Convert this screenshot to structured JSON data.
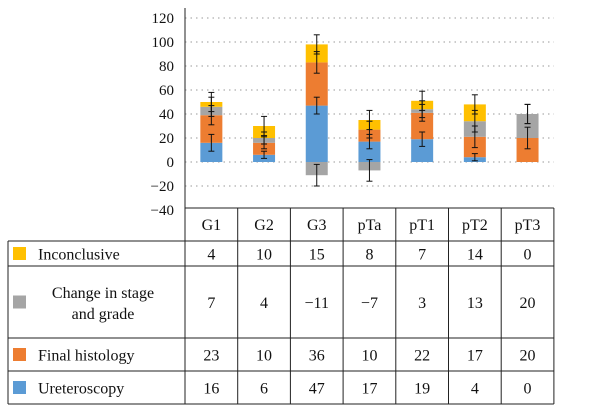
{
  "chart_data": {
    "type": "bar",
    "stacked": true,
    "categories": [
      "G1",
      "G2",
      "G3",
      "pTa",
      "pT1",
      "pT2",
      "pT3"
    ],
    "ylim": [
      -40,
      120
    ],
    "y_ticks": [
      "120",
      "100",
      "80",
      "60",
      "40",
      "20",
      "0",
      "−20",
      "−40"
    ],
    "grid": "dotted horizontal",
    "legend_placement": "table rows below chart",
    "series": [
      {
        "name": "Ureteroscopy",
        "color": "#5b9bd5",
        "values": [
          16,
          6,
          47,
          17,
          19,
          4,
          0
        ],
        "labels": [
          "16",
          "6",
          "47",
          "17",
          "19",
          "4",
          "0"
        ]
      },
      {
        "name": "Final histology",
        "color": "#ed7d31",
        "values": [
          23,
          10,
          36,
          10,
          22,
          17,
          20
        ],
        "labels": [
          "23",
          "10",
          "36",
          "10",
          "22",
          "17",
          "20"
        ]
      },
      {
        "name": "Change in stage and grade",
        "color": "#a5a5a5",
        "values": [
          7,
          4,
          -11,
          -7,
          3,
          13,
          20
        ],
        "labels": [
          "7",
          "4",
          "−11",
          "−7",
          "3",
          "13",
          "20"
        ]
      },
      {
        "name": "Inconclusive",
        "color": "#ffc000",
        "values": [
          4,
          10,
          15,
          8,
          7,
          14,
          0
        ],
        "labels": [
          "4",
          "10",
          "15",
          "8",
          "7",
          "14",
          "0"
        ]
      }
    ],
    "error_bars": [
      {
        "series": "Ureteroscopy",
        "values": [
          16,
          6,
          47,
          17,
          19,
          4,
          0
        ],
        "err": [
          7,
          3,
          7,
          6,
          6,
          3,
          0
        ]
      },
      {
        "series": "Final histology",
        "values": [
          39,
          16,
          83,
          27,
          41,
          21,
          20
        ],
        "err": [
          8,
          5,
          9,
          7,
          7,
          9,
          9
        ]
      },
      {
        "series": "Change in stage and grade",
        "values": [
          46,
          20,
          -11,
          -7,
          44,
          34,
          40
        ],
        "err": [
          8,
          5,
          9,
          9,
          7,
          9,
          8
        ]
      },
      {
        "series": "Inconclusive",
        "values": [
          50,
          30,
          98,
          35,
          51,
          48,
          40
        ],
        "err": [
          8,
          8,
          8,
          8,
          8,
          8,
          8
        ]
      }
    ],
    "table_rows_order": [
      "Inconclusive",
      "Change in stage and grade",
      "Final histology",
      "Ureteroscopy"
    ]
  }
}
